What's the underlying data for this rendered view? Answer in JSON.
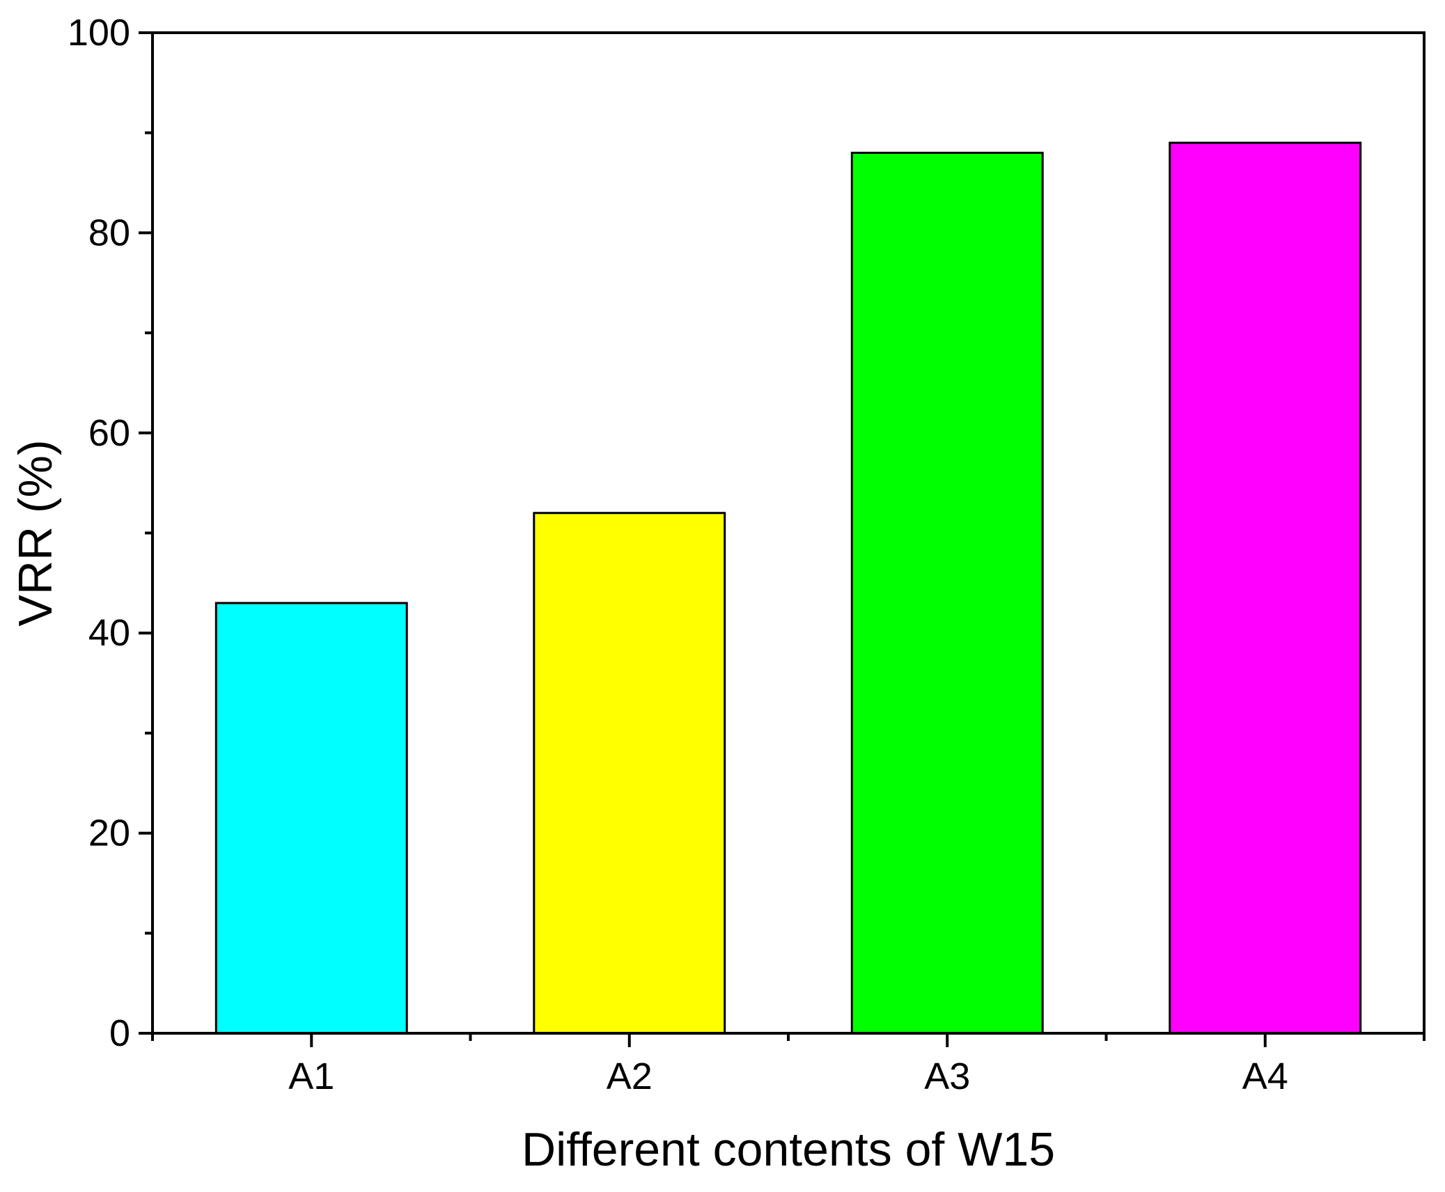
{
  "chart_data": {
    "type": "bar",
    "title": "",
    "xlabel": "Different contents of W15",
    "ylabel": "VRR (%)",
    "categories": [
      "A1",
      "A2",
      "A3",
      "A4"
    ],
    "values": [
      43,
      52,
      88,
      89
    ],
    "colors": [
      "#00ffff",
      "#ffff00",
      "#00ff00",
      "#ff00ff"
    ],
    "ylim": [
      0,
      100
    ],
    "yticks": [
      0,
      20,
      40,
      60,
      80,
      100
    ],
    "yticks_minor": [
      10,
      30,
      50,
      70,
      90
    ],
    "grid": false,
    "legend": "none"
  }
}
